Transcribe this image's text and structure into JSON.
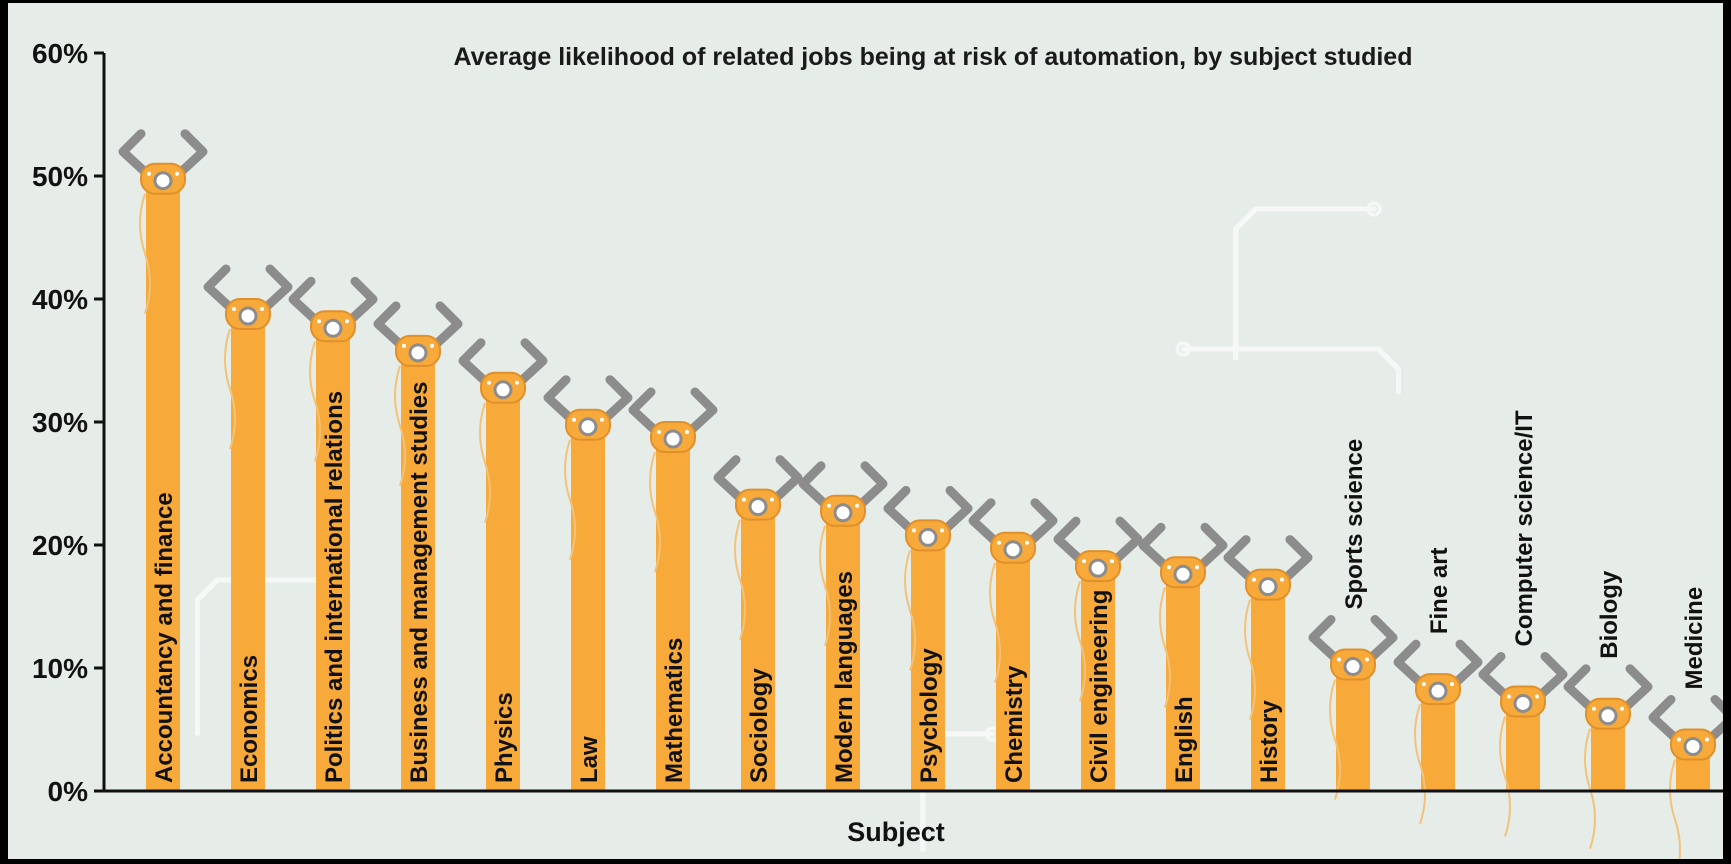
{
  "chart_data": {
    "type": "bar",
    "title": "Average likelihood of related jobs being at risk of automation, by subject studied",
    "xlabel": "Subject",
    "ylabel": "",
    "ylim": [
      0,
      60
    ],
    "y_ticks": [
      "0%",
      "10%",
      "20%",
      "30%",
      "40%",
      "50%",
      "60%"
    ],
    "categories": [
      "Accountancy and finance",
      "Economics",
      "Politics and international relations",
      "Business and management studies",
      "Physics",
      "Law",
      "Mathematics",
      "Sociology",
      "Modern languages",
      "Psychology",
      "Chemistry",
      "Civil engineering",
      "English",
      "History",
      "Sports science",
      "Fine art",
      "Computer science/IT",
      "Biology",
      "Medicine"
    ],
    "values": [
      51,
      40,
      39,
      37,
      34,
      31,
      30,
      24.5,
      24,
      22,
      21,
      19.5,
      19,
      18,
      11.5,
      9.5,
      8.5,
      7.5,
      5
    ],
    "label_inside_bar": [
      true,
      true,
      true,
      true,
      true,
      true,
      true,
      true,
      true,
      true,
      true,
      true,
      true,
      true,
      false,
      false,
      false,
      false,
      false
    ],
    "grid": false,
    "legend": "none",
    "colors": {
      "background": "#e6ece8",
      "circuit": "#f5f8f6",
      "bar": "#f7a93a",
      "bar_outline": "#e0902a",
      "claw": "#8c8c8c",
      "axis": "#111111",
      "outer": "#000000"
    }
  }
}
